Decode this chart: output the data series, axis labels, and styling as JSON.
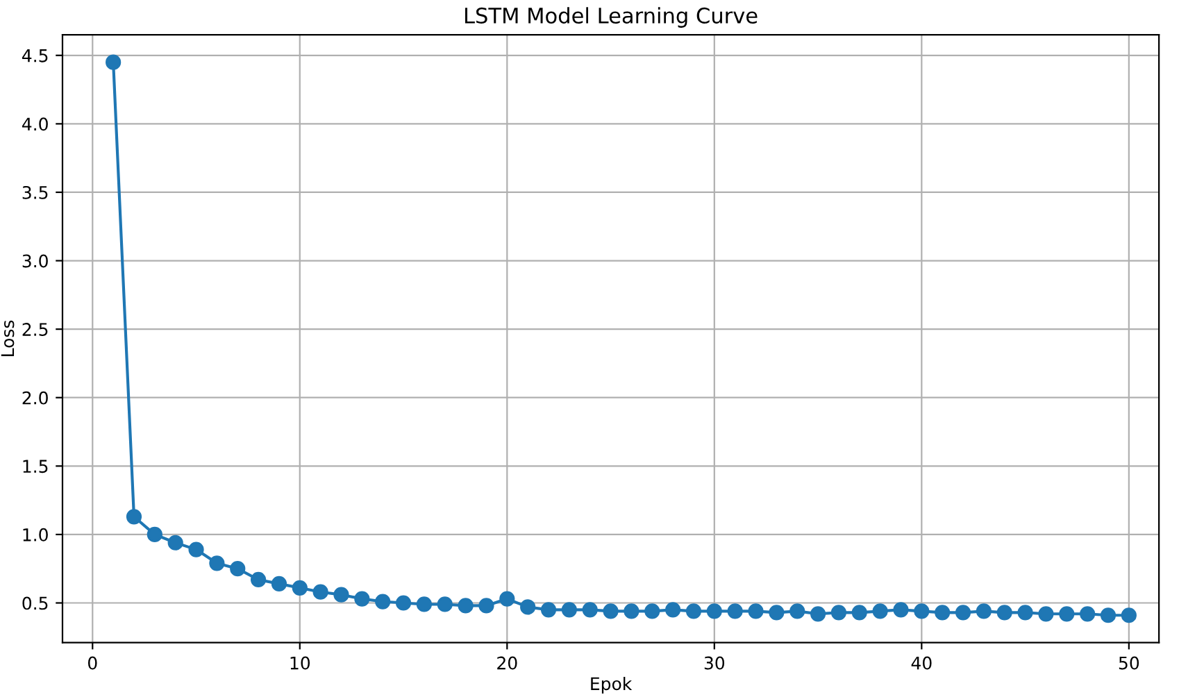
{
  "chart_data": {
    "type": "line",
    "title": "LSTM Model Learning Curve",
    "xlabel": "Epok",
    "ylabel": "Loss",
    "x": [
      1,
      2,
      3,
      4,
      5,
      6,
      7,
      8,
      9,
      10,
      11,
      12,
      13,
      14,
      15,
      16,
      17,
      18,
      19,
      20,
      21,
      22,
      23,
      24,
      25,
      26,
      27,
      28,
      29,
      30,
      31,
      32,
      33,
      34,
      35,
      36,
      37,
      38,
      39,
      40,
      41,
      42,
      43,
      44,
      45,
      46,
      47,
      48,
      49,
      50
    ],
    "series": [
      {
        "color": "#1f77b4",
        "values": [
          4.45,
          1.13,
          1.0,
          0.94,
          0.89,
          0.79,
          0.75,
          0.67,
          0.64,
          0.61,
          0.58,
          0.56,
          0.53,
          0.51,
          0.5,
          0.49,
          0.49,
          0.48,
          0.48,
          0.53,
          0.47,
          0.45,
          0.45,
          0.45,
          0.44,
          0.44,
          0.44,
          0.45,
          0.44,
          0.44,
          0.44,
          0.44,
          0.43,
          0.44,
          0.42,
          0.43,
          0.43,
          0.44,
          0.45,
          0.44,
          0.43,
          0.43,
          0.44,
          0.43,
          0.43,
          0.42,
          0.42,
          0.42,
          0.41,
          0.41
        ]
      }
    ],
    "xlim": [
      -1.45,
      51.45
    ],
    "ylim": [
      0.21,
      4.65
    ],
    "xticks": [
      0,
      10,
      20,
      30,
      40,
      50
    ],
    "yticks": [
      0.5,
      {
        "value": 1,
        "label": "1.0"
      },
      1.5,
      {
        "value": 2,
        "label": "2.0"
      },
      2.5,
      {
        "value": 3,
        "label": "3.0"
      },
      3.5,
      {
        "value": 4,
        "label": "4.0"
      },
      4.5
    ],
    "grid": true,
    "marker": "circle",
    "line_style": "solid"
  }
}
